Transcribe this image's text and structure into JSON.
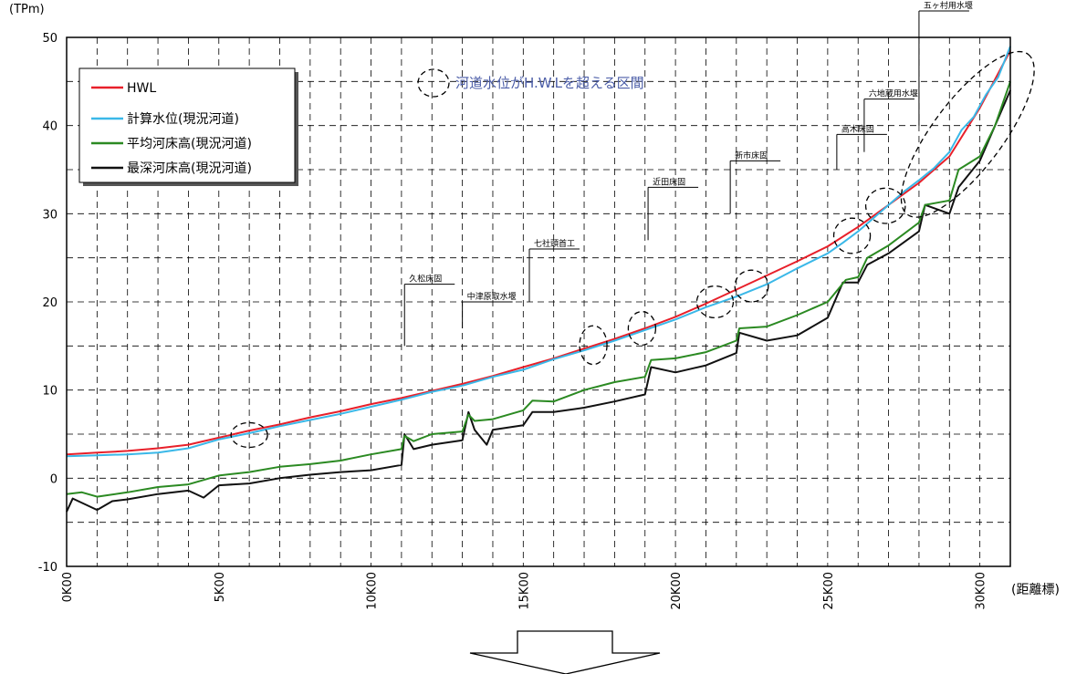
{
  "chart_data": {
    "type": "line",
    "y_unit_label": "(TPm)",
    "x_unit_label": "(距離標)",
    "xlim": [
      0,
      31
    ],
    "ylim": [
      -10,
      50
    ],
    "y_ticks": [
      -10,
      0,
      10,
      20,
      30,
      40,
      50
    ],
    "x_ticks": [
      {
        "value": 0,
        "label": "0K00"
      },
      {
        "value": 5,
        "label": "5K00"
      },
      {
        "value": 10,
        "label": "10K00"
      },
      {
        "value": 15,
        "label": "15K00"
      },
      {
        "value": 20,
        "label": "20K00"
      },
      {
        "value": 25,
        "label": "25K00"
      },
      {
        "value": 30,
        "label": "30K00"
      }
    ],
    "grid": true,
    "legend_position": "top-left",
    "series": [
      {
        "name": "HWL",
        "color": "#e8202a",
        "x": [
          0,
          1,
          2,
          3,
          4,
          5,
          6,
          7,
          8,
          9,
          10,
          11,
          12,
          13,
          14,
          15,
          16,
          17,
          18,
          19,
          20,
          21,
          22,
          23,
          24,
          25,
          26,
          27,
          28,
          29,
          30,
          31
        ],
        "y": [
          2.7,
          2.9,
          3.1,
          3.4,
          3.8,
          4.6,
          5.4,
          6.1,
          6.9,
          7.6,
          8.4,
          9.1,
          9.9,
          10.7,
          11.6,
          12.6,
          13.6,
          14.7,
          15.8,
          17.0,
          18.3,
          19.8,
          21.4,
          23.0,
          24.6,
          26.3,
          28.5,
          31.0,
          33.5,
          36.5,
          42.0,
          48.5
        ]
      },
      {
        "name": "計算水位(現況河道)",
        "color": "#3ab8e8",
        "x": [
          0,
          1,
          2,
          3,
          4,
          5,
          6,
          7,
          8,
          9,
          10,
          11,
          12,
          13,
          14,
          15,
          16,
          17,
          18,
          19,
          20,
          21,
          22,
          23,
          24,
          25,
          25.5,
          26,
          26.5,
          27,
          27.5,
          28,
          28.5,
          29,
          29.4,
          29.8,
          30.2,
          30.6,
          31
        ],
        "y": [
          2.5,
          2.6,
          2.7,
          2.9,
          3.4,
          4.4,
          5.1,
          5.9,
          6.6,
          7.3,
          8.1,
          8.9,
          9.8,
          10.5,
          11.5,
          12.3,
          13.5,
          14.5,
          15.6,
          16.8,
          18.0,
          19.4,
          20.6,
          22.0,
          23.8,
          25.5,
          26.7,
          28.0,
          29.5,
          31.0,
          32.5,
          33.8,
          35.2,
          37.0,
          39.5,
          41.0,
          43.5,
          45.5,
          49.0
        ]
      },
      {
        "name": "平均河床高(現況河道)",
        "color": "#2b8a22",
        "x": [
          0,
          0.5,
          1,
          2,
          3,
          4,
          5,
          6,
          7,
          8,
          9,
          10,
          11,
          11.1,
          11.4,
          12,
          13,
          13.2,
          13.4,
          14,
          15,
          15.3,
          16,
          17,
          18,
          19,
          19.2,
          20,
          21,
          22,
          22.1,
          23,
          24,
          25,
          25.6,
          26,
          26.3,
          27,
          28,
          28.2,
          29,
          29.3,
          30,
          30.5,
          31
        ],
        "y": [
          -1.8,
          -1.6,
          -2.1,
          -1.6,
          -1.0,
          -0.7,
          0.3,
          0.7,
          1.3,
          1.6,
          2.0,
          2.7,
          3.3,
          4.8,
          4.2,
          5.0,
          5.3,
          7.2,
          6.5,
          6.7,
          7.7,
          8.8,
          8.7,
          10.0,
          10.9,
          11.5,
          13.4,
          13.6,
          14.3,
          15.6,
          17.0,
          17.2,
          18.5,
          20.0,
          22.5,
          22.8,
          25.0,
          26.4,
          29.0,
          31.0,
          31.5,
          35.0,
          36.5,
          40.0,
          45.0
        ]
      },
      {
        "name": "最深河床高(現況河道)",
        "color": "#111111",
        "x": [
          0,
          0.2,
          1,
          1.5,
          2,
          3,
          4,
          4.5,
          5,
          6,
          7,
          8,
          9,
          10,
          11,
          11.1,
          11.4,
          12,
          13,
          13.2,
          13.4,
          13.8,
          14,
          15,
          15.3,
          16,
          17,
          18,
          19,
          19.2,
          20,
          21,
          22,
          22.1,
          23,
          24,
          25,
          25.5,
          26,
          26.3,
          27,
          28,
          28.2,
          29,
          29.3,
          30,
          31
        ],
        "y": [
          -3.8,
          -2.3,
          -3.6,
          -2.6,
          -2.4,
          -1.8,
          -1.4,
          -2.2,
          -0.8,
          -0.6,
          0.0,
          0.4,
          0.7,
          0.9,
          1.5,
          5.0,
          3.3,
          3.8,
          4.3,
          7.5,
          5.5,
          3.8,
          5.5,
          6.0,
          7.5,
          7.5,
          8.0,
          8.7,
          9.5,
          12.6,
          12.0,
          12.8,
          14.2,
          16.5,
          15.6,
          16.2,
          18.2,
          22.2,
          22.2,
          24.2,
          25.5,
          28.0,
          31.0,
          30.0,
          33.0,
          36.0,
          44.0
        ]
      }
    ],
    "annotation_text": "河道水位がH.W.Lを超える区間",
    "structures": [
      {
        "x": 11.1,
        "label": "久松床固"
      },
      {
        "x": 13.0,
        "label": "中津原取水堰"
      },
      {
        "x": 15.2,
        "label": "七社頭首工"
      },
      {
        "x": 19.1,
        "label": "近田床固"
      },
      {
        "x": 21.8,
        "label": "新市床固"
      },
      {
        "x": 25.3,
        "label": "高木床固"
      },
      {
        "x": 26.2,
        "label": "六地蔵用水堰"
      },
      {
        "x": 28.0,
        "label": "五ヶ村用水堰"
      }
    ],
    "exceedance_sections": [
      {
        "x": 6.0,
        "y": 4.9,
        "rx": 0.6,
        "ry": 1.4
      },
      {
        "x": 17.3,
        "y": 15.1,
        "rx": 0.45,
        "ry": 2.2
      },
      {
        "x": 18.9,
        "y": 17.0,
        "rx": 0.45,
        "ry": 1.9
      },
      {
        "x": 21.3,
        "y": 20.0,
        "rx": 0.6,
        "ry": 1.8
      },
      {
        "x": 22.5,
        "y": 21.8,
        "rx": 0.55,
        "ry": 1.8
      },
      {
        "x": 25.8,
        "y": 27.5,
        "rx": 0.6,
        "ry": 2.0
      },
      {
        "x": 26.9,
        "y": 30.9,
        "rx": 0.65,
        "ry": 2.0
      }
    ]
  }
}
